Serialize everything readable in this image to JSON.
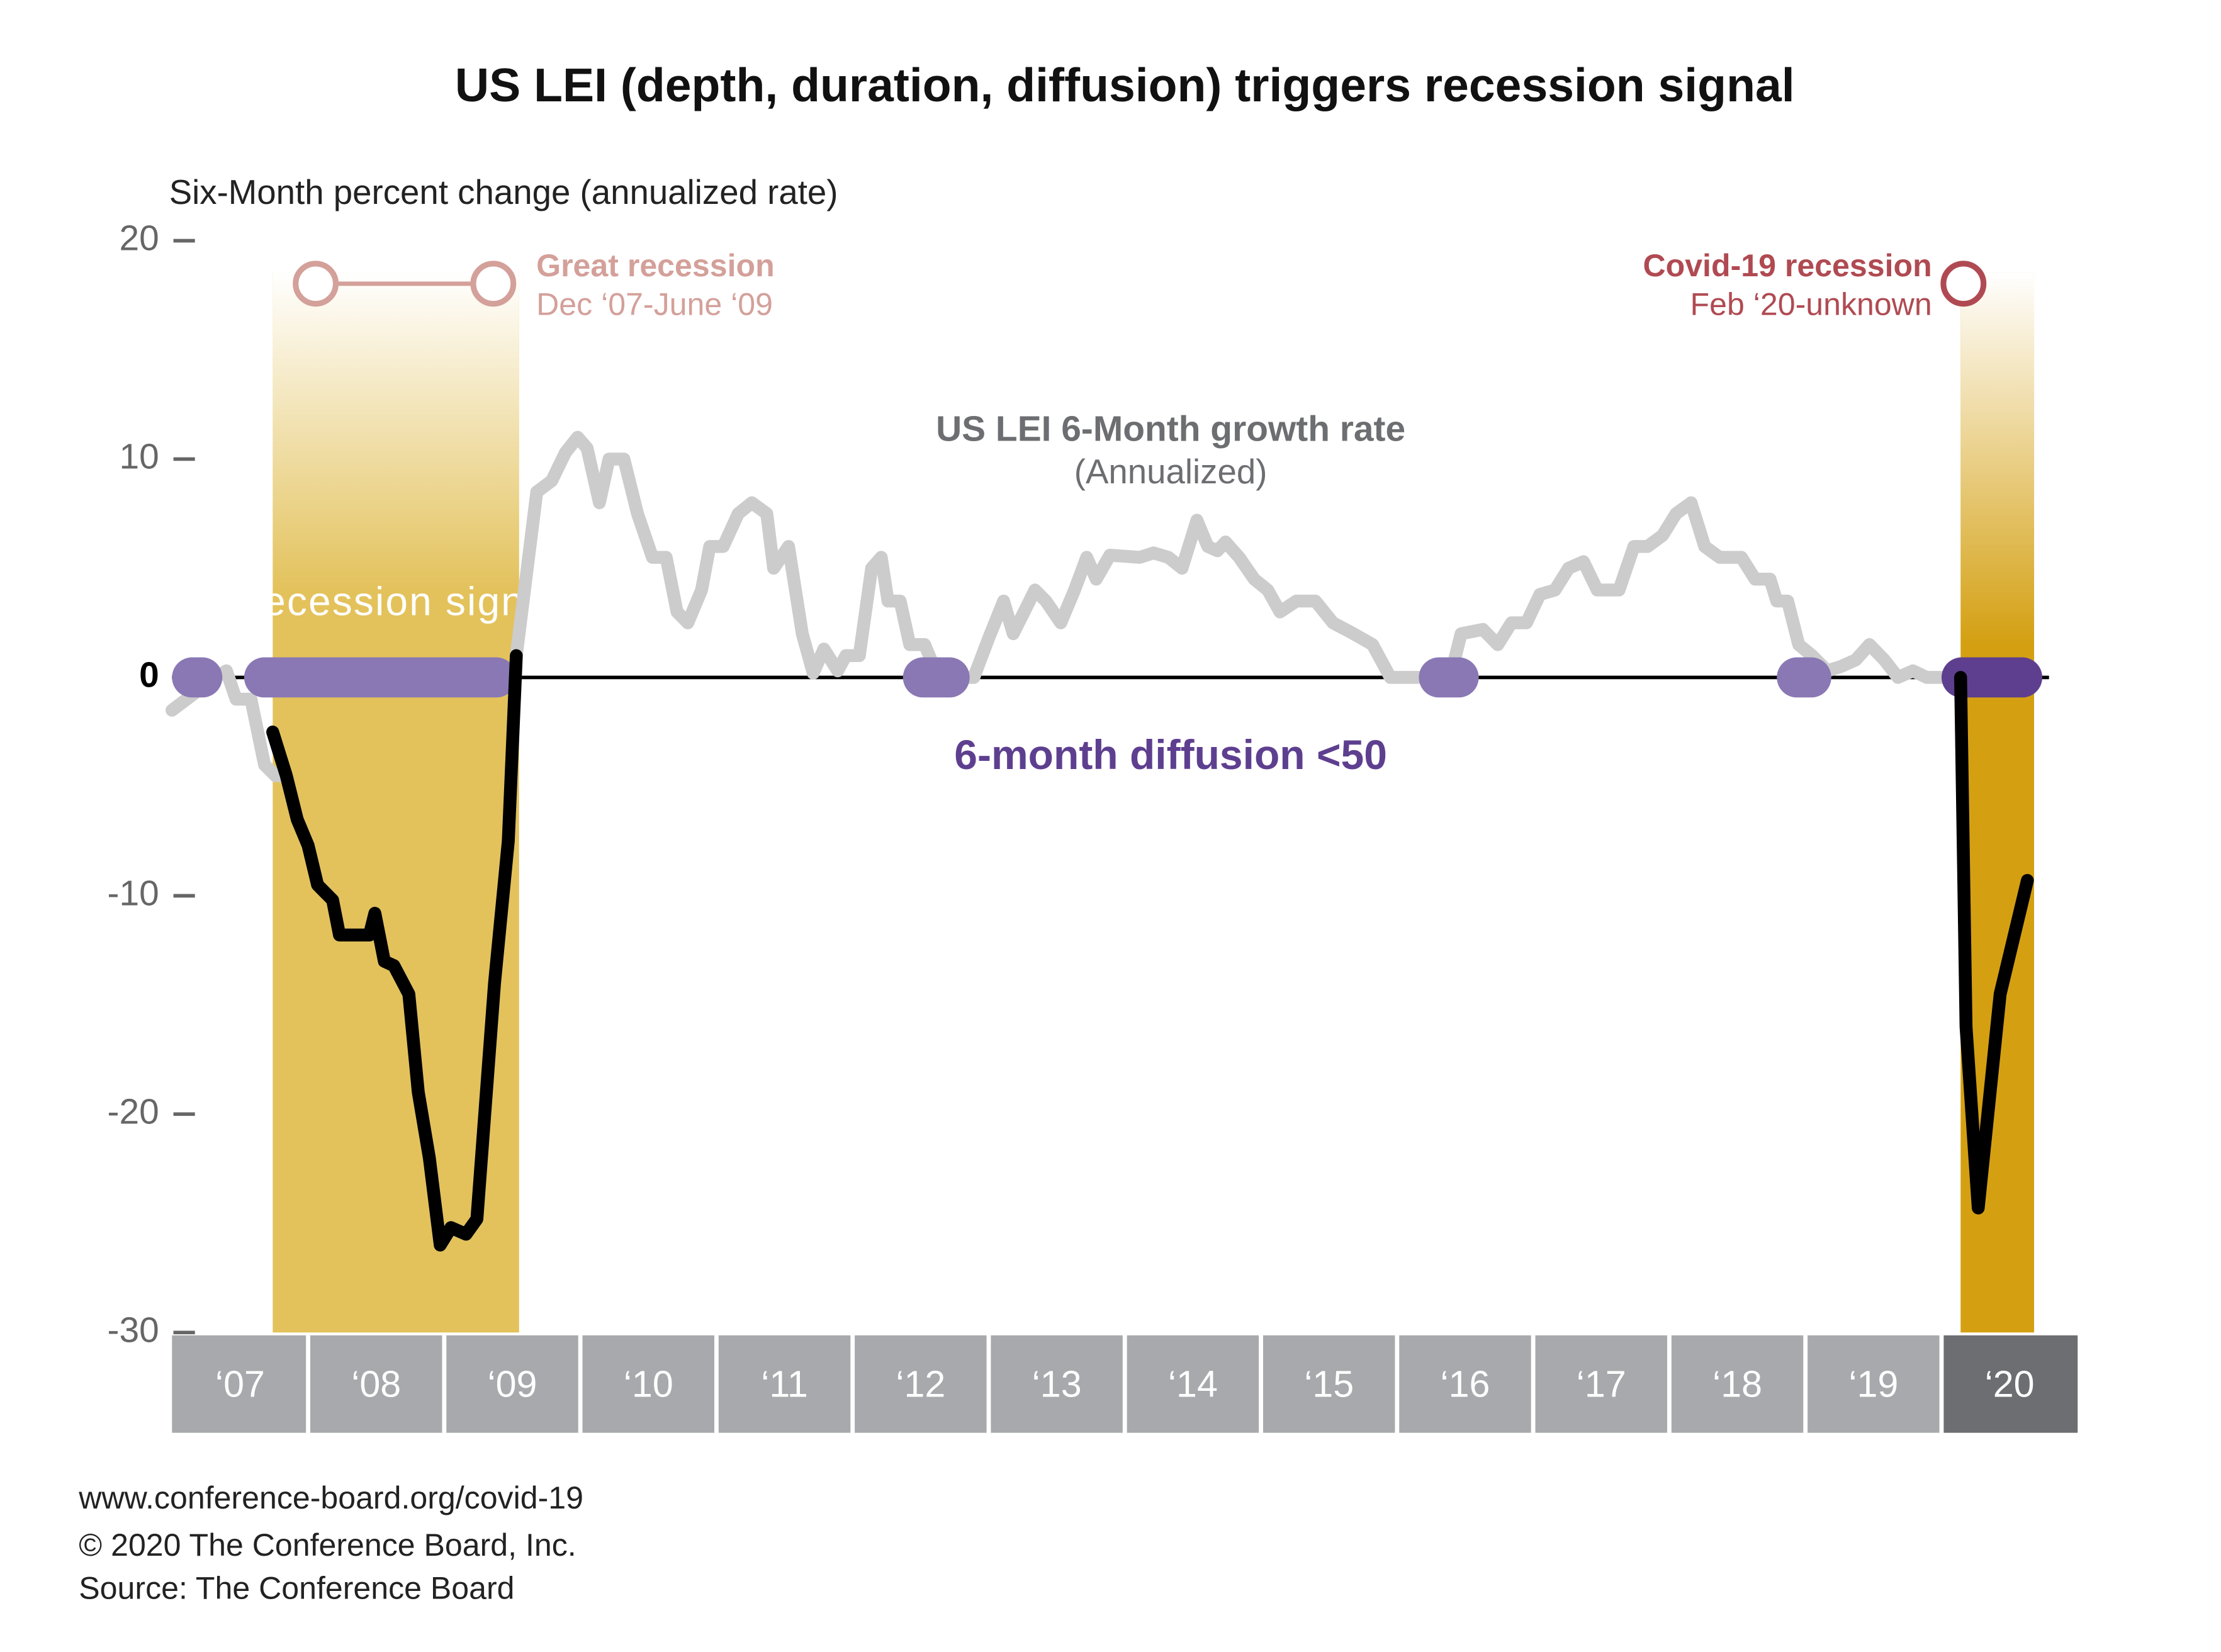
{
  "chart_data": {
    "type": "line",
    "title": "US LEI (depth, duration, diffusion) triggers recession signal",
    "y_axis_label": "Six-Month percent change (annualized rate)",
    "xlim": [
      2007,
      2021
    ],
    "ylim": [
      -30,
      20
    ],
    "yticks": [
      20,
      10,
      0,
      -10,
      -20,
      -30
    ],
    "xticks": [
      {
        "value": 2007,
        "label": "‘07"
      },
      {
        "value": 2008,
        "label": "‘08"
      },
      {
        "value": 2009,
        "label": "‘09"
      },
      {
        "value": 2010,
        "label": "‘10"
      },
      {
        "value": 2011,
        "label": "‘11"
      },
      {
        "value": 2012,
        "label": "‘12"
      },
      {
        "value": 2013,
        "label": "‘13"
      },
      {
        "value": 2014,
        "label": "‘14"
      },
      {
        "value": 2015,
        "label": "‘15"
      },
      {
        "value": 2016,
        "label": "‘16"
      },
      {
        "value": 2017,
        "label": "‘17"
      },
      {
        "value": 2018,
        "label": "‘18"
      },
      {
        "value": 2019,
        "label": "‘19"
      },
      {
        "value": 2020,
        "label": "‘20"
      }
    ],
    "series": [
      {
        "name": "US LEI 6-Month growth rate",
        "name_note": "(Annualized)",
        "color": "#cccccc",
        "x": [
          2007.0,
          2007.32,
          2007.4,
          2007.47,
          2007.58,
          2007.68,
          2007.76,
          2007.84,
          2007.92,
          2008.0,
          2008.07,
          2008.18,
          2008.23,
          2008.37,
          2008.45,
          2008.49,
          2008.56,
          2008.63,
          2008.74,
          2008.81,
          2008.89,
          2008.97,
          2009.05,
          2009.16,
          2009.24,
          2009.37,
          2009.47,
          2009.53,
          2009.68,
          2009.79,
          2009.89,
          2009.98,
          2010.05,
          2010.14,
          2010.21,
          2010.32,
          2010.42,
          2010.53,
          2010.63,
          2010.71,
          2010.79,
          2010.89,
          2010.95,
          2011.05,
          2011.16,
          2011.26,
          2011.37,
          2011.42,
          2011.53,
          2011.63,
          2011.71,
          2011.79,
          2011.89,
          2011.95,
          2012.05,
          2012.14,
          2012.21,
          2012.26,
          2012.35,
          2012.42,
          2012.53,
          2012.63,
          2012.89,
          2013.0,
          2013.11,
          2013.18,
          2013.26,
          2013.34,
          2013.42,
          2013.53,
          2013.63,
          2013.72,
          2013.79,
          2013.89,
          2014.11,
          2014.21,
          2014.32,
          2014.42,
          2014.53,
          2014.61,
          2014.68,
          2014.74,
          2014.84,
          2014.95,
          2015.05,
          2015.14,
          2015.26,
          2015.4,
          2015.53,
          2015.68,
          2015.82,
          2015.95,
          2016.26,
          2016.37,
          2016.47,
          2016.63,
          2016.74,
          2016.84,
          2016.95,
          2017.05,
          2017.16,
          2017.26,
          2017.37,
          2017.47,
          2017.63,
          2017.74,
          2017.84,
          2017.95,
          2018.05,
          2018.16,
          2018.26,
          2018.37,
          2018.53,
          2018.63,
          2018.74,
          2018.79,
          2018.87,
          2018.95,
          2019.05,
          2019.16,
          2019.26,
          2019.37,
          2019.47,
          2019.58,
          2019.68,
          2019.79,
          2019.89,
          2020.11
        ],
        "values": [
          -1.5,
          0,
          0.3,
          -1,
          -1,
          -4,
          -4.5,
          -4.5,
          -6.5,
          -7.7,
          -9.5,
          -10.2,
          -11.8,
          -11.8,
          -11.8,
          -10.8,
          -13,
          -13.2,
          -14.5,
          -19,
          -22,
          -26,
          -25.2,
          -25.5,
          -24.8,
          -14,
          -7.5,
          1,
          8.5,
          9,
          10.3,
          11,
          10.5,
          8,
          10,
          10,
          7.5,
          5.5,
          5.5,
          3,
          2.5,
          4,
          6,
          6,
          7.5,
          8,
          7.5,
          5,
          6,
          2,
          0.2,
          1.3,
          0.3,
          1,
          1,
          5,
          5.5,
          3.5,
          3.5,
          1.5,
          1.5,
          0,
          0,
          1.8,
          3.5,
          2,
          3,
          4,
          3.5,
          2.5,
          4,
          5.5,
          4.5,
          5.6,
          5.5,
          5.7,
          5.5,
          5,
          7.2,
          6,
          5.8,
          6.2,
          5.5,
          4.5,
          4,
          3,
          3.5,
          3.5,
          2.5,
          2,
          1.5,
          0,
          0,
          -0.5,
          2,
          2.2,
          1.5,
          2.5,
          2.5,
          3.8,
          4,
          5,
          5.3,
          4,
          4,
          6,
          6,
          6.5,
          7.5,
          8,
          6,
          5.5,
          5.5,
          4.5,
          4.5,
          3.5,
          3.5,
          1.5,
          1,
          0.3,
          0.5,
          0.8,
          1.5,
          0.8,
          0,
          0.3,
          0,
          0
        ]
      },
      {
        "name": "Recession signal",
        "color": "#000000",
        "x": [
          2007.74,
          2007.84,
          2007.92,
          2008.0,
          2008.07,
          2008.18,
          2008.23,
          2008.37,
          2008.45,
          2008.49,
          2008.56,
          2008.63,
          2008.74,
          2008.81,
          2008.89,
          2008.97,
          2009.05,
          2009.16,
          2009.24,
          2009.37,
          2009.47,
          2009.53,
          null,
          2020.14,
          2020.18,
          2020.27,
          2020.43,
          2020.63
        ],
        "values": [
          -2.5,
          -4.5,
          -6.5,
          -7.7,
          -9.5,
          -10.2,
          -11.8,
          -11.8,
          -11.8,
          -10.8,
          -13,
          -13.2,
          -14.5,
          -19,
          -22,
          -26,
          -25.2,
          -25.5,
          -24.8,
          -14,
          -7.5,
          1,
          null,
          0,
          -16,
          -24.3,
          -14.5,
          -9.3
        ]
      }
    ],
    "recessions": [
      {
        "name": "Great recession",
        "dates": "Dec ‘07-June ‘09",
        "start": 2007.74,
        "end": 2009.55,
        "color": "#e3c25c",
        "label_color": "#d4a09a"
      },
      {
        "name": "Covid-19 recession",
        "dates": "Feb ‘20-unknown",
        "start": 2020.14,
        "end": 2020.68,
        "color": "#d4a012",
        "label_color": "#b04a52"
      }
    ],
    "diffusion": {
      "label": "6-month diffusion <50",
      "color": "#8a78b4",
      "current_color": "#5e3f8f",
      "periods": [
        [
          2007.0,
          2007.37
        ],
        [
          2007.53,
          2009.53
        ],
        [
          2012.37,
          2012.86
        ],
        [
          2016.16,
          2016.6
        ],
        [
          2018.79,
          2019.19
        ],
        [
          2020.0,
          2020.74
        ]
      ]
    },
    "footer": [
      "www.conference-board.org/covid-19",
      "© 2020 The Conference Board, Inc.",
      "Source: The Conference Board"
    ]
  }
}
